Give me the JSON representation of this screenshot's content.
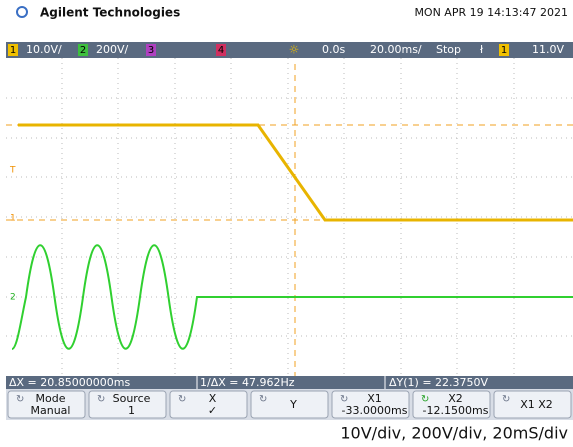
{
  "header": {
    "brand": "Agilent Technologies",
    "datetime": "MON APR 19 14:13:47 2021"
  },
  "status": {
    "ch1": "1",
    "ch1_scale": "10.0V/",
    "ch2": "2",
    "ch2_scale": "200V/",
    "ch3": "3",
    "ch4": "4",
    "delay": "0.0s",
    "timebase": "20.00ms/",
    "run": "Stop",
    "trig_src": "1",
    "trig_level": "11.0V"
  },
  "markers": {
    "trigger": "T",
    "ch1": "1",
    "ch2": "2"
  },
  "readouts": {
    "dx": "ΔX = 20.85000000ms",
    "inv_dx": "1/ΔX = 47.962Hz",
    "dy": "ΔY(1) = 22.3750V"
  },
  "softkeys": [
    {
      "title": "Mode",
      "value": "Manual"
    },
    {
      "title": "Source",
      "value": "1"
    },
    {
      "title": "X",
      "value": "✓"
    },
    {
      "title": "Y",
      "value": ""
    },
    {
      "title": "X1",
      "value": "-33.0000ms"
    },
    {
      "title": "X2",
      "value": "-12.1500ms"
    },
    {
      "title": "X1 X2",
      "value": ""
    }
  ],
  "caption": "10V/div, 200V/div, 20mS/div"
}
